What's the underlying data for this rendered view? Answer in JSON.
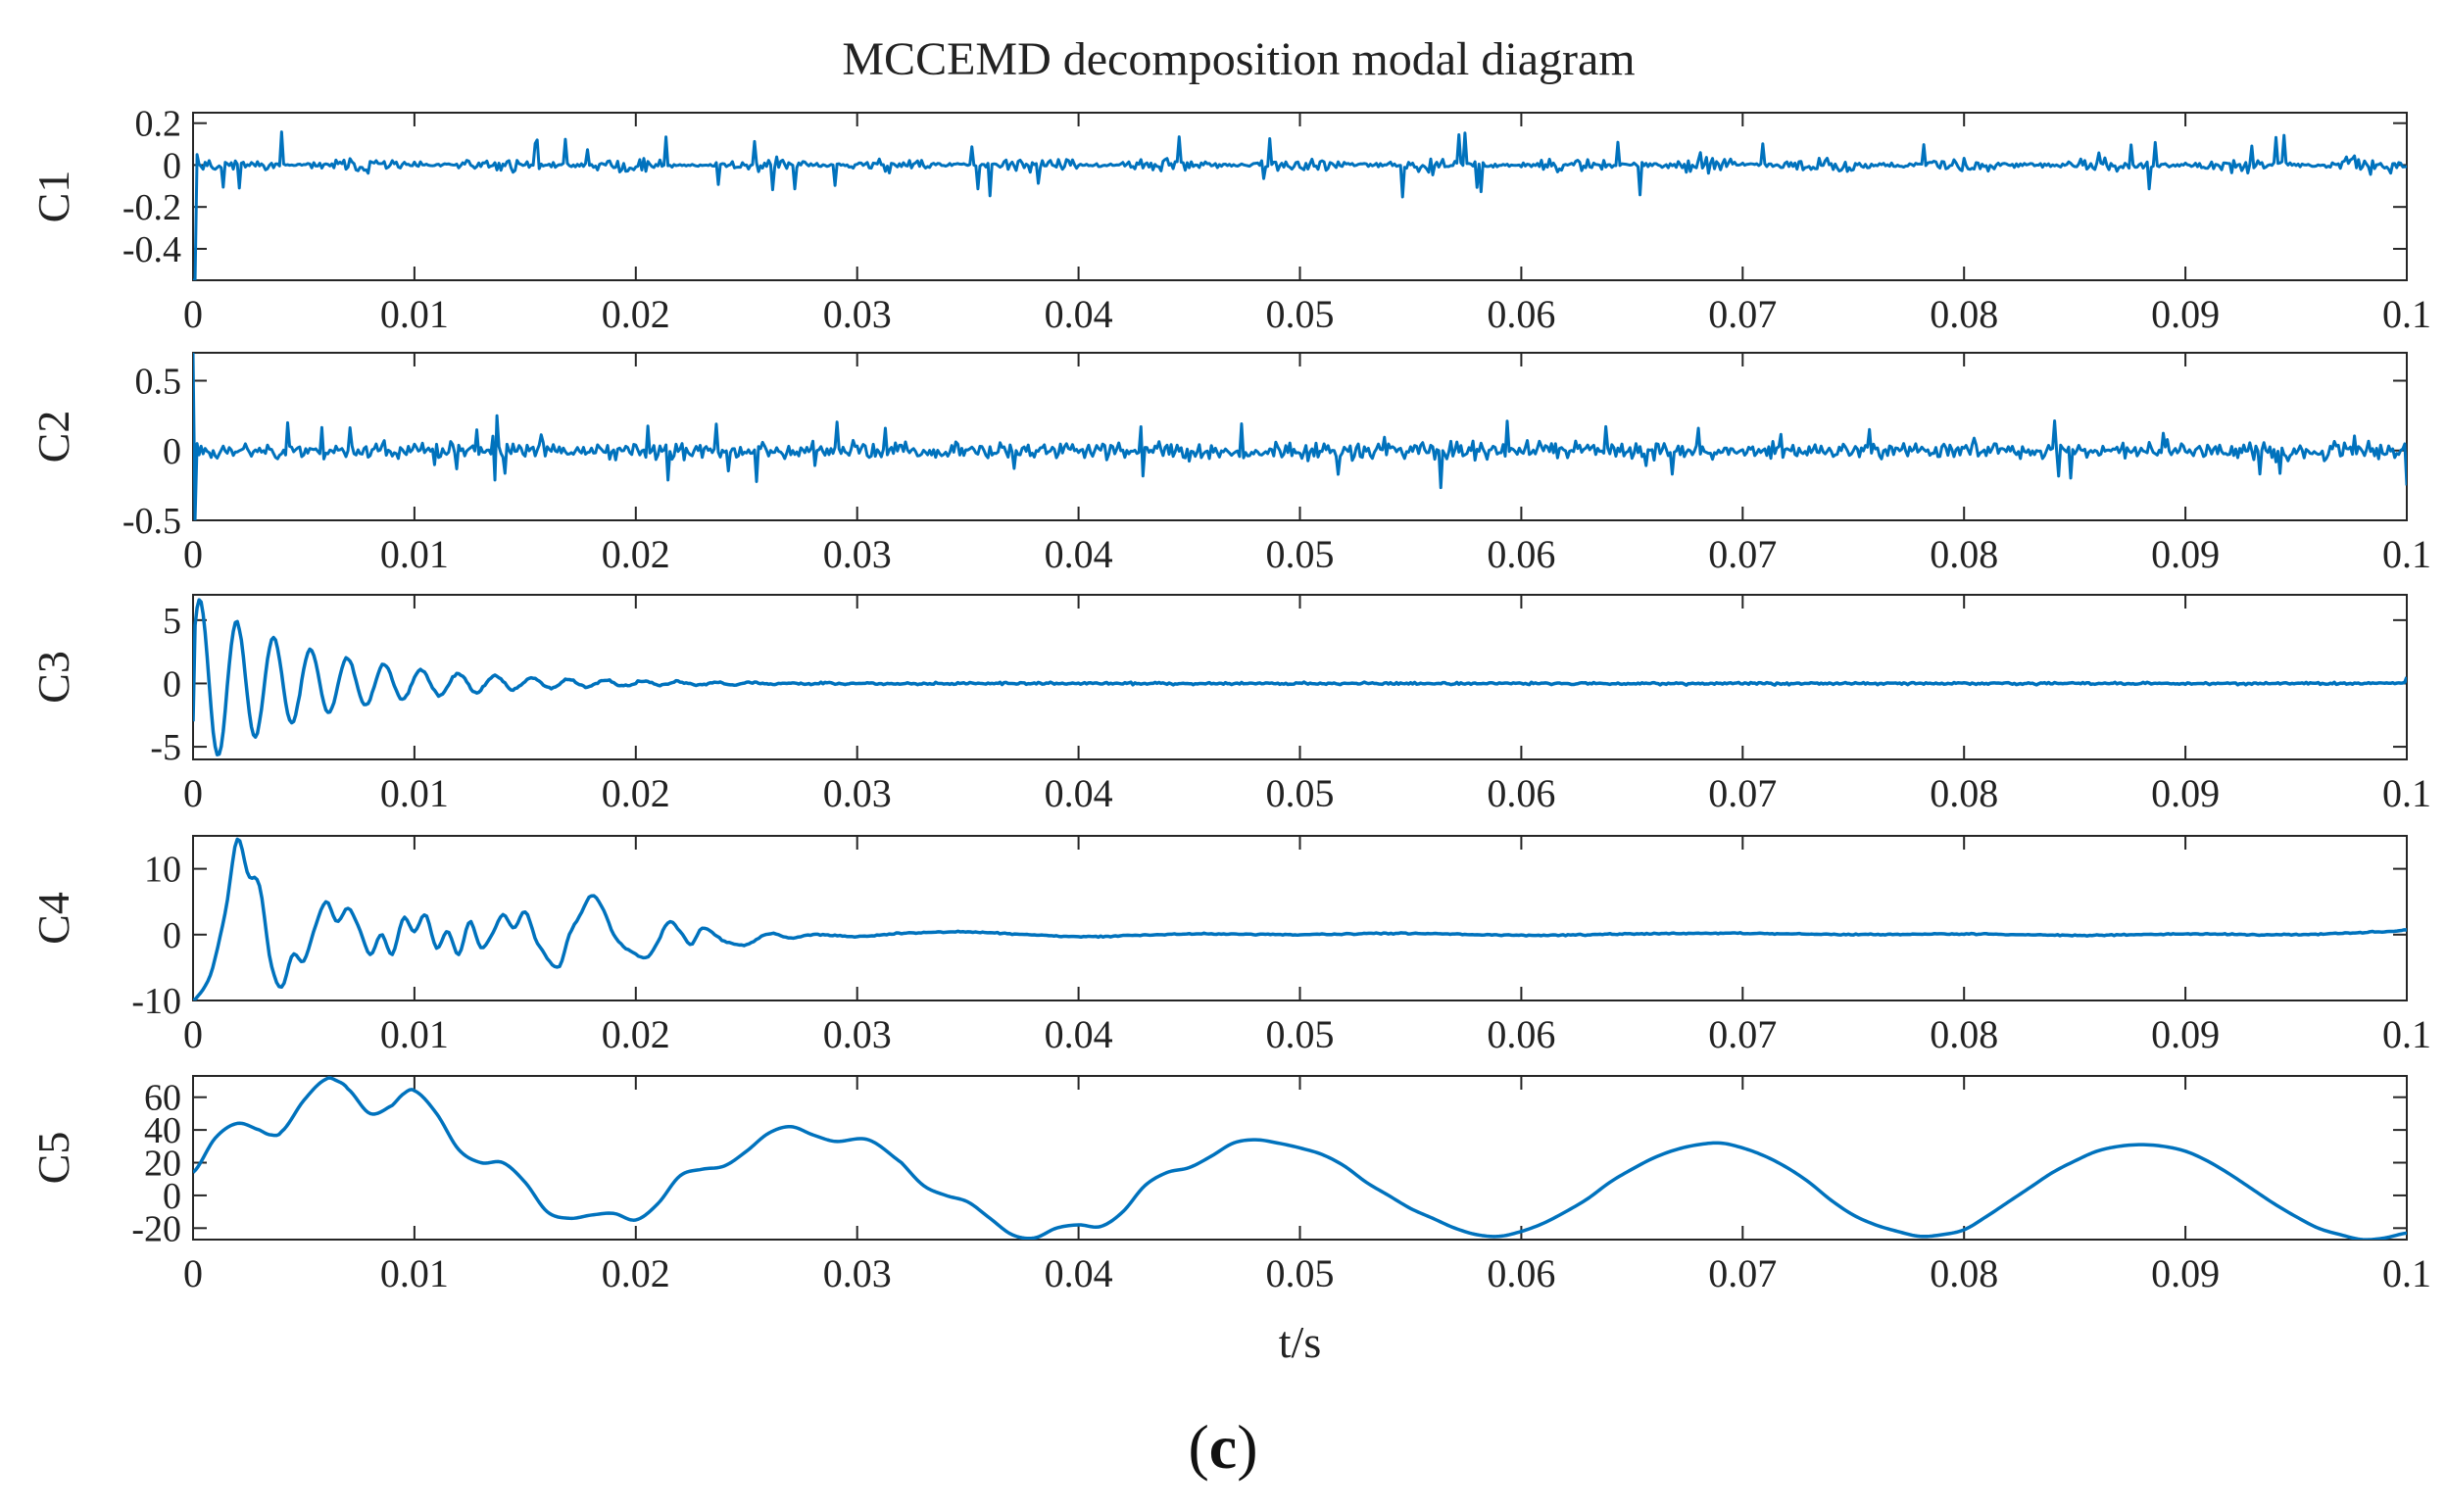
{
  "title": "MCCEMD decomposition modal diagram",
  "caption": {
    "open": "(",
    "letter": "c",
    "close": ")"
  },
  "colors": {
    "line": "#0072BD",
    "axis": "#262626",
    "text": "#222222"
  },
  "chart_data": [
    {
      "type": "line",
      "name": "C1",
      "ylabel": "C1",
      "xlim": [
        0,
        0.1
      ],
      "ylim": [
        -0.55,
        0.25
      ],
      "xticks": [
        "0",
        "0.01",
        "0.02",
        "0.03",
        "0.04",
        "0.05",
        "0.06",
        "0.07",
        "0.08",
        "0.09",
        "0.1"
      ],
      "yticks": [
        {
          "value": 0.2,
          "label": "0.2"
        },
        {
          "value": 0,
          "label": "0"
        },
        {
          "value": -0.2,
          "label": "-0.2"
        },
        {
          "value": -0.4,
          "label": "-0.4"
        }
      ],
      "signal": {
        "kind": "noise",
        "amplitude": 0.06,
        "spike_amplitude": 0.15,
        "bursts": true,
        "start_value": -0.55,
        "start_spike": -0.55,
        "seed": 11
      }
    },
    {
      "type": "line",
      "name": "C2",
      "ylabel": "C2",
      "xlim": [
        0,
        0.1
      ],
      "ylim": [
        -0.5,
        0.7
      ],
      "xticks": [
        "0",
        "0.01",
        "0.02",
        "0.03",
        "0.04",
        "0.05",
        "0.06",
        "0.07",
        "0.08",
        "0.09",
        "0.1"
      ],
      "yticks": [
        {
          "value": 0.5,
          "label": "0.5"
        },
        {
          "value": 0,
          "label": "0"
        },
        {
          "value": -0.5,
          "label": "-0.5"
        }
      ],
      "signal": {
        "kind": "noise",
        "amplitude": 0.1,
        "spike_amplitude": 0.22,
        "bursts": false,
        "start_value": 0.7,
        "start_spike": -0.5,
        "end_value": -0.25,
        "seed": 23
      }
    },
    {
      "type": "line",
      "name": "C3",
      "ylabel": "C3",
      "xlim": [
        0,
        0.1
      ],
      "ylim": [
        -6,
        7
      ],
      "xticks": [
        "0",
        "0.01",
        "0.02",
        "0.03",
        "0.04",
        "0.05",
        "0.06",
        "0.07",
        "0.08",
        "0.09",
        "0.1"
      ],
      "yticks": [
        {
          "value": 5,
          "label": "5"
        },
        {
          "value": 0,
          "label": "0"
        },
        {
          "value": -5,
          "label": "-5"
        }
      ],
      "signal": {
        "kind": "damped",
        "amplitude": 7,
        "frequency": 600,
        "decay": 180,
        "residual": 0.15,
        "start_value": -3,
        "end_value": 0.5,
        "seed": 37
      }
    },
    {
      "type": "line",
      "name": "C4",
      "ylabel": "C4",
      "xlim": [
        0,
        0.1
      ],
      "ylim": [
        -10,
        15
      ],
      "xticks": [
        "0",
        "0.01",
        "0.02",
        "0.03",
        "0.04",
        "0.05",
        "0.06",
        "0.07",
        "0.08",
        "0.09",
        "0.1"
      ],
      "yticks": [
        {
          "value": 10,
          "label": "10"
        },
        {
          "value": 0,
          "label": "0"
        },
        {
          "value": -10,
          "label": "-10"
        }
      ],
      "signal": {
        "kind": "points",
        "seed": 41,
        "t": [
          0,
          0.0008,
          0.0015,
          0.002,
          0.0025,
          0.003,
          0.0035,
          0.004,
          0.0045,
          0.005,
          0.0055,
          0.006,
          0.0065,
          0.007,
          0.0075,
          0.008,
          0.0085,
          0.009,
          0.0095,
          0.01,
          0.0105,
          0.011,
          0.0115,
          0.012,
          0.0125,
          0.013,
          0.0135,
          0.014,
          0.0145,
          0.015,
          0.0155,
          0.0165,
          0.017,
          0.0175,
          0.018,
          0.0185,
          0.019,
          0.0195,
          0.0205,
          0.021,
          0.0215,
          0.022,
          0.0225,
          0.023,
          0.024,
          0.025,
          0.026,
          0.027,
          0.028,
          0.03,
          0.032,
          0.035,
          0.04,
          0.045,
          0.05,
          0.055,
          0.06,
          0.065,
          0.07,
          0.075,
          0.08,
          0.085,
          0.09,
          0.095,
          0.0995,
          0.1
        ],
        "y": [
          -10,
          -6,
          4,
          14.5,
          9,
          7.5,
          -4,
          -8,
          -3,
          -4,
          1,
          5,
          2,
          4,
          1,
          -3,
          0,
          -3,
          2.5,
          0.5,
          3,
          -2,
          0.5,
          -3,
          2,
          -2,
          0,
          3,
          1,
          3.5,
          -1,
          -5,
          0,
          3,
          6,
          4,
          0,
          -2,
          -3.5,
          -1,
          2,
          0.5,
          -1.5,
          1,
          -1,
          -1.5,
          0.2,
          -0.5,
          0,
          -0.3,
          0.2,
          0.4,
          -0.3,
          0.1,
          0,
          0.2,
          -0.1,
          0.1,
          0.2,
          0,
          0.1,
          -0.1,
          0.1,
          0,
          0.5,
          0.8
        ],
        "jitter": 0.15
      }
    },
    {
      "type": "line",
      "name": "C5",
      "ylabel": "C5",
      "xlabel": "t/s",
      "xlim": [
        0,
        0.1
      ],
      "ylim": [
        -27,
        73
      ],
      "xticks": [
        "0",
        "0.01",
        "0.02",
        "0.03",
        "0.04",
        "0.05",
        "0.06",
        "0.07",
        "0.08",
        "0.09",
        "0.1"
      ],
      "yticks": [
        {
          "value": 60,
          "label": "60"
        },
        {
          "value": 40,
          "label": "40"
        },
        {
          "value": 20,
          "label": "20"
        },
        {
          "value": 0,
          "label": "0"
        },
        {
          "value": -20,
          "label": "-20"
        }
      ],
      "signal": {
        "kind": "points",
        "seed": 53,
        "t": [
          0,
          0.001,
          0.002,
          0.003,
          0.0035,
          0.004,
          0.005,
          0.006,
          0.0065,
          0.007,
          0.008,
          0.009,
          0.0095,
          0.01,
          0.011,
          0.012,
          0.013,
          0.014,
          0.015,
          0.016,
          0.017,
          0.018,
          0.019,
          0.02,
          0.021,
          0.022,
          0.023,
          0.024,
          0.025,
          0.026,
          0.027,
          0.028,
          0.029,
          0.0305,
          0.032,
          0.033,
          0.034,
          0.035,
          0.036,
          0.037,
          0.038,
          0.039,
          0.04,
          0.041,
          0.042,
          0.043,
          0.044,
          0.045,
          0.046,
          0.047,
          0.048,
          0.049,
          0.05,
          0.051,
          0.052,
          0.053,
          0.054,
          0.055,
          0.056,
          0.057,
          0.058,
          0.059,
          0.06,
          0.061,
          0.062,
          0.063,
          0.064,
          0.065,
          0.066,
          0.067,
          0.068,
          0.069,
          0.07,
          0.071,
          0.072,
          0.073,
          0.074,
          0.075,
          0.076,
          0.077,
          0.078,
          0.079,
          0.08,
          0.081,
          0.082,
          0.083,
          0.084,
          0.085,
          0.086,
          0.087,
          0.088,
          0.089,
          0.09,
          0.091,
          0.092,
          0.093,
          0.094,
          0.095,
          0.096,
          0.097,
          0.098,
          0.099,
          0.1
        ],
        "y": [
          14,
          35,
          44,
          40,
          37,
          39,
          58,
          71,
          70,
          65,
          50,
          55,
          62,
          64,
          50,
          28,
          20,
          20,
          8,
          -10,
          -14,
          -12,
          -11,
          -15,
          -5,
          12,
          16,
          18,
          27,
          38,
          42,
          37,
          33,
          34,
          20,
          6,
          0,
          -4,
          -14,
          -24,
          -26,
          -20,
          -18,
          -19,
          -10,
          6,
          14,
          17,
          24,
          32,
          34,
          32,
          29,
          25,
          18,
          8,
          0,
          -8,
          -14,
          -20,
          -24,
          -25,
          -22,
          -17,
          -10,
          -2,
          8,
          16,
          23,
          28,
          31,
          32,
          29,
          24,
          17,
          8,
          -3,
          -12,
          -18,
          -22,
          -25,
          -24,
          -21,
          -13,
          -4,
          5,
          14,
          21,
          27,
          30,
          31,
          30,
          27,
          21,
          13,
          4,
          -5,
          -13,
          -20,
          -24,
          -27,
          -26,
          -23
        ]
      }
    }
  ]
}
